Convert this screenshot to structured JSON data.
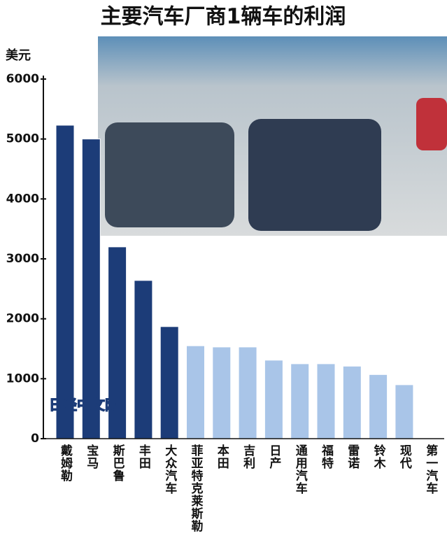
{
  "chart_data": {
    "type": "bar",
    "title": "主要汽车厂商1辆车的利润",
    "y_label": "美元",
    "annotation": "日经中文网",
    "categories": [
      "戴姆勒",
      "宝马",
      "斯巴鲁",
      "丰田",
      "大众汽车",
      "菲亚特克莱斯勒",
      "本田",
      "吉利",
      "日产",
      "通用汽车",
      "福特",
      "雷诺",
      "铃木",
      "现代",
      "第一汽车"
    ],
    "values": [
      5230,
      5000,
      3200,
      2640,
      1870,
      1550,
      1530,
      1530,
      1310,
      1250,
      1250,
      1210,
      1070,
      900,
      0
    ],
    "colors": [
      "#1c3c78",
      "#1c3c78",
      "#1c3c78",
      "#1c3c78",
      "#1c3c78",
      "#a9c5e8",
      "#a9c5e8",
      "#a9c5e8",
      "#a9c5e8",
      "#a9c5e8",
      "#a9c5e8",
      "#a9c5e8",
      "#a9c5e8",
      "#a9c5e8",
      "#a9c5e8"
    ],
    "ylim": [
      0,
      6000
    ],
    "yticks": [
      0,
      1000,
      2000,
      3000,
      4000,
      5000,
      6000
    ],
    "grid": false
  }
}
